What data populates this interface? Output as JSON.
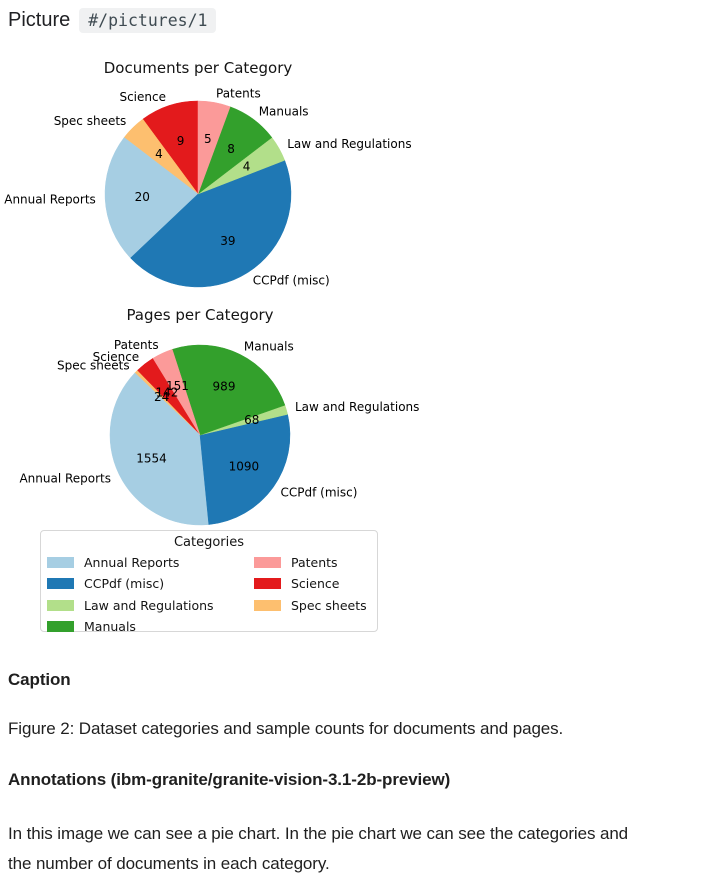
{
  "header": {
    "label": "Picture",
    "path": "#/pictures/1"
  },
  "chart_data": [
    {
      "type": "pie",
      "title": "Documents per Category",
      "start_angle_deg": 90,
      "direction": "counterclockwise",
      "values_position": "inside",
      "slices": [
        {
          "label": "Science",
          "value": 9,
          "color": "#e31a1c"
        },
        {
          "label": "Spec sheets",
          "value": 4,
          "color": "#fdbf6f"
        },
        {
          "label": "Annual Reports",
          "value": 20,
          "color": "#a6cee3"
        },
        {
          "label": "CCPdf (misc)",
          "value": 39,
          "color": "#1f78b4"
        },
        {
          "label": "Law and Regulations",
          "value": 4,
          "color": "#b2df8a"
        },
        {
          "label": "Manuals",
          "value": 8,
          "color": "#33a02c"
        },
        {
          "label": "Patents",
          "value": 5,
          "color": "#fb9a99"
        }
      ]
    },
    {
      "type": "pie",
      "title": "Pages per Category",
      "start_angle_deg": 121.5,
      "direction": "counterclockwise",
      "values_position": "inside",
      "slices": [
        {
          "label": "Science",
          "value": 142,
          "color": "#e31a1c"
        },
        {
          "label": "Spec sheets",
          "value": 24,
          "color": "#fdbf6f"
        },
        {
          "label": "Annual Reports",
          "value": 1554,
          "color": "#a6cee3"
        },
        {
          "label": "CCPdf (misc)",
          "value": 1090,
          "color": "#1f78b4"
        },
        {
          "label": "Law and Regulations",
          "value": 68,
          "color": "#b2df8a"
        },
        {
          "label": "Manuals",
          "value": 989,
          "color": "#33a02c"
        },
        {
          "label": "Patents",
          "value": 151,
          "color": "#fb9a99"
        }
      ]
    }
  ],
  "legend": {
    "title": "Categories",
    "items": [
      {
        "label": "Annual Reports",
        "color": "#a6cee3"
      },
      {
        "label": "CCPdf (misc)",
        "color": "#1f78b4"
      },
      {
        "label": "Law and Regulations",
        "color": "#b2df8a"
      },
      {
        "label": "Manuals",
        "color": "#33a02c"
      },
      {
        "label": "Patents",
        "color": "#fb9a99"
      },
      {
        "label": "Science",
        "color": "#e31a1c"
      },
      {
        "label": "Spec sheets",
        "color": "#fdbf6f"
      }
    ]
  },
  "caption": {
    "heading": "Caption",
    "text": "Figure 2: Dataset categories and sample counts for documents and pages."
  },
  "annotations": {
    "heading": "Annotations (ibm-granite/granite-vision-3.1-2b-preview)",
    "lines": [
      "In this image we can see a pie chart. In the pie chart we can see the categories and",
      "the number of documents in each category."
    ]
  }
}
